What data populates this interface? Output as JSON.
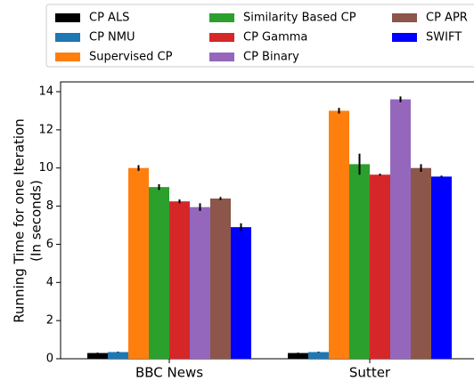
{
  "chart_data": {
    "type": "bar",
    "y_label": [
      "Running Time for one Iteration",
      "(In seconds)"
    ],
    "categories": [
      "BBC News",
      "Sutter"
    ],
    "series": [
      {
        "name": "CP ALS",
        "color": "#000000",
        "values": [
          0.3,
          0.3
        ],
        "errors": [
          0.02,
          0.02
        ]
      },
      {
        "name": "CP NMU",
        "color": "#1f77b4",
        "values": [
          0.35,
          0.35
        ],
        "errors": [
          0.02,
          0.02
        ]
      },
      {
        "name": "Supervised CP",
        "color": "#ff7f0e",
        "values": [
          10.0,
          13.0
        ],
        "errors": [
          0.15,
          0.15
        ]
      },
      {
        "name": "Similarity Based CP",
        "color": "#2ca02c",
        "values": [
          9.0,
          10.2
        ],
        "errors": [
          0.15,
          0.55
        ]
      },
      {
        "name": "CP Gamma",
        "color": "#d62728",
        "values": [
          8.25,
          9.65
        ],
        "errors": [
          0.1,
          0.05
        ]
      },
      {
        "name": "CP Binary",
        "color": "#9467bd",
        "values": [
          7.95,
          13.6
        ],
        "errors": [
          0.2,
          0.15
        ]
      },
      {
        "name": "CP APR",
        "color": "#8c564b",
        "values": [
          8.4,
          10.0
        ],
        "errors": [
          0.08,
          0.2
        ]
      },
      {
        "name": "SWIFT",
        "color": "#0000ff",
        "values": [
          6.9,
          9.55
        ],
        "errors": [
          0.2,
          0.05
        ]
      }
    ],
    "ylim": [
      0,
      14
    ],
    "yticks": [
      0,
      2,
      4,
      6,
      8,
      10,
      12,
      14
    ],
    "legend": {
      "position": "top",
      "columns": 3
    }
  }
}
